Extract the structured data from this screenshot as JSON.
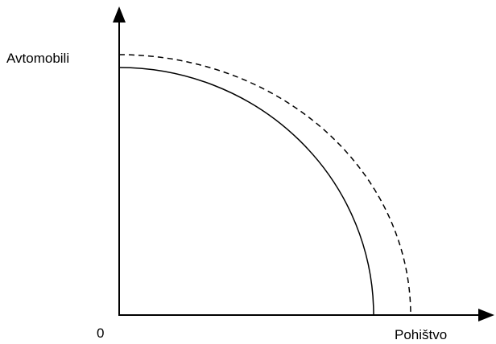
{
  "diagram": {
    "y_axis_label": "Avtomobili",
    "x_axis_label": "Pohištvo",
    "origin_label": "0"
  },
  "curves": {
    "original": {
      "style": "solid",
      "color": "#000000"
    },
    "shifted": {
      "style": "dashed",
      "color": "#000000"
    }
  }
}
